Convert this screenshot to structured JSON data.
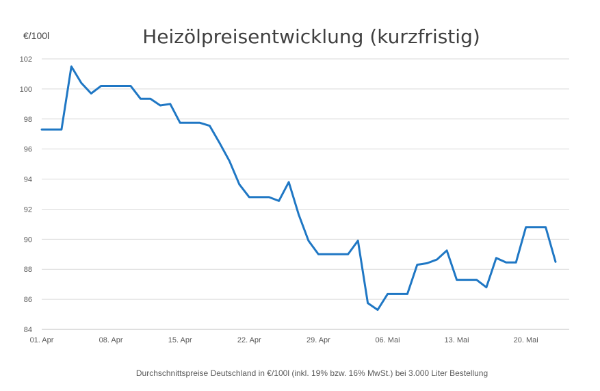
{
  "chart_data": {
    "type": "line",
    "title": "Heizölpreisentwicklung (kurzfristig)",
    "ylabel": "€/100l",
    "footnote": "Durchschnittspreise Deutschland in €/100l (inkl. 19% bzw. 16%  MwSt.) bei 3.000 Liter Bestellung",
    "ylim": [
      84,
      102
    ],
    "yticks": [
      84,
      86,
      88,
      90,
      92,
      94,
      96,
      98,
      100,
      102
    ],
    "grid": true,
    "xticks": [
      {
        "label": "01. Apr",
        "index": 0
      },
      {
        "label": "08. Apr",
        "index": 7
      },
      {
        "label": "15. Apr",
        "index": 14
      },
      {
        "label": "22. Apr",
        "index": 21
      },
      {
        "label": "29. Apr",
        "index": 28
      },
      {
        "label": "06. Mai",
        "index": 35
      },
      {
        "label": "13. Mai",
        "index": 42
      },
      {
        "label": "20. Mai",
        "index": 49
      }
    ],
    "x": [
      "01. Apr",
      "02. Apr",
      "03. Apr",
      "04. Apr",
      "05. Apr",
      "06. Apr",
      "07. Apr",
      "08. Apr",
      "09. Apr",
      "10. Apr",
      "11. Apr",
      "12. Apr",
      "13. Apr",
      "14. Apr",
      "15. Apr",
      "16. Apr",
      "17. Apr",
      "18. Apr",
      "19. Apr",
      "20. Apr",
      "21. Apr",
      "22. Apr",
      "23. Apr",
      "24. Apr",
      "25. Apr",
      "26. Apr",
      "27. Apr",
      "28. Apr",
      "29. Apr",
      "30. Apr",
      "01. Mai",
      "02. Mai",
      "03. Mai",
      "04. Mai",
      "05. Mai",
      "06. Mai",
      "07. Mai",
      "08. Mai",
      "09. Mai",
      "10. Mai",
      "11. Mai",
      "12. Mai",
      "13. Mai",
      "14. Mai",
      "15. Mai",
      "16. Mai",
      "17. Mai",
      "18. Mai",
      "19. Mai",
      "20. Mai",
      "21. Mai",
      "22. Mai",
      "23. Mai"
    ],
    "series": [
      {
        "color": "#1f77c4",
        "values": [
          97.3,
          97.3,
          97.3,
          101.5,
          100.4,
          99.7,
          100.2,
          100.2,
          100.2,
          100.2,
          99.35,
          99.35,
          98.9,
          99.0,
          97.75,
          97.75,
          97.75,
          97.55,
          96.4,
          95.2,
          93.65,
          92.8,
          92.8,
          92.8,
          92.55,
          93.8,
          91.65,
          89.9,
          89.0,
          89.0,
          89.0,
          89.0,
          89.9,
          85.75,
          85.3,
          86.35,
          86.35,
          86.35,
          88.3,
          88.4,
          88.65,
          89.25,
          87.3,
          87.3,
          87.3,
          86.8,
          88.75,
          88.45,
          88.45,
          90.8,
          90.8,
          90.8,
          88.5
        ]
      }
    ]
  }
}
